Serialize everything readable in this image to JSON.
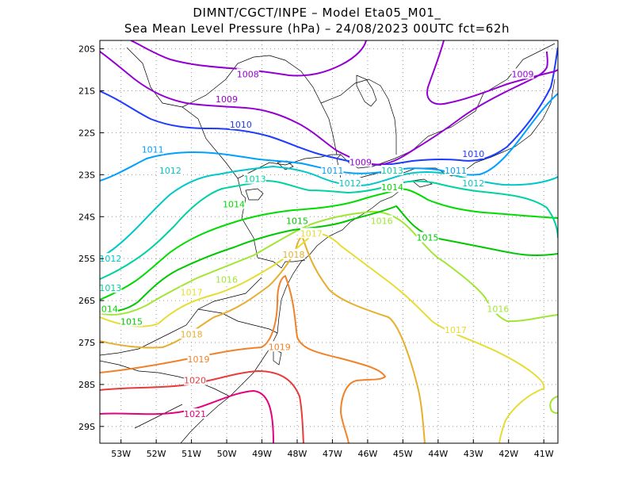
{
  "title": {
    "line1": "DIMNT/CGCT/INPE –  Model Eta05_M01_",
    "line2": "Sea Mean Level Pressure (hPa) – 24/08/2023 00UTC fct=62h"
  },
  "axes": {
    "lat_labels": [
      "20S",
      "21S",
      "22S",
      "23S",
      "24S",
      "25S",
      "26S",
      "27S",
      "28S",
      "29S"
    ],
    "lon_labels": [
      "53W",
      "52W",
      "51W",
      "50W",
      "49W",
      "48W",
      "47W",
      "46W",
      "45W",
      "44W",
      "43W",
      "42W",
      "41W"
    ],
    "lat_range": [
      -29.4,
      -19.8
    ],
    "lon_range": [
      -53.6,
      -40.6
    ],
    "grid": "dotted"
  },
  "contour_labels": [
    {
      "text": "1008",
      "color": "#9400d3",
      "lon": -49.4,
      "lat": -20.6
    },
    {
      "text": "1009",
      "color": "#9400d3",
      "lon": -50.0,
      "lat": -21.2
    },
    {
      "text": "1009",
      "color": "#9400d3",
      "lon": -41.6,
      "lat": -20.6
    },
    {
      "text": "1009",
      "color": "#9400d3",
      "lon": -46.2,
      "lat": -22.7
    },
    {
      "text": "1010",
      "color": "#1e3cff",
      "lon": -49.6,
      "lat": -21.8
    },
    {
      "text": "1010",
      "color": "#1e3cff",
      "lon": -43.0,
      "lat": -22.5
    },
    {
      "text": "1011",
      "color": "#00a0ff",
      "lon": -52.1,
      "lat": -22.4
    },
    {
      "text": "1011",
      "color": "#00a0ff",
      "lon": -47.0,
      "lat": -22.9
    },
    {
      "text": "1011",
      "color": "#00a0ff",
      "lon": -43.5,
      "lat": -22.9
    },
    {
      "text": "1012",
      "color": "#00c8c8",
      "lon": -51.6,
      "lat": -22.9
    },
    {
      "text": "1012",
      "color": "#00c8c8",
      "lon": -46.5,
      "lat": -23.2
    },
    {
      "text": "1012",
      "color": "#00c8c8",
      "lon": -43.0,
      "lat": -23.2
    },
    {
      "text": "1012",
      "color": "#00c8c8",
      "lon": -53.3,
      "lat": -25.0
    },
    {
      "text": "1013",
      "color": "#00d2a0",
      "lon": -49.2,
      "lat": -23.1
    },
    {
      "text": "1013",
      "color": "#00d2a0",
      "lon": -45.3,
      "lat": -22.9
    },
    {
      "text": "1013",
      "color": "#00d2a0",
      "lon": -53.3,
      "lat": -25.7
    },
    {
      "text": "1014",
      "color": "#00dc00",
      "lon": -49.8,
      "lat": -23.7
    },
    {
      "text": "1014",
      "color": "#00dc00",
      "lon": -45.3,
      "lat": -23.3
    },
    {
      "text": "1014",
      "color": "#00dc00",
      "lon": -53.4,
      "lat": -26.2
    },
    {
      "text": "1015",
      "color": "#00c800",
      "lon": -48.0,
      "lat": -24.1
    },
    {
      "text": "1015",
      "color": "#00c800",
      "lon": -44.3,
      "lat": -24.5
    },
    {
      "text": "1015",
      "color": "#00c800",
      "lon": -52.7,
      "lat": -26.5
    },
    {
      "text": "1016",
      "color": "#a0e632",
      "lon": -45.6,
      "lat": -24.1
    },
    {
      "text": "1016",
      "color": "#a0e632",
      "lon": -50.0,
      "lat": -25.5
    },
    {
      "text": "1016",
      "color": "#a0e632",
      "lon": -42.3,
      "lat": -26.2
    },
    {
      "text": "1017",
      "color": "#e6dc32",
      "lon": -47.6,
      "lat": -24.4
    },
    {
      "text": "1017",
      "color": "#e6dc32",
      "lon": -51.0,
      "lat": -25.8
    },
    {
      "text": "1017",
      "color": "#e6dc32",
      "lon": -43.5,
      "lat": -26.7
    },
    {
      "text": "1018",
      "color": "#e6af2d",
      "lon": -48.1,
      "lat": -24.9
    },
    {
      "text": "1018",
      "color": "#e6af2d",
      "lon": -51.0,
      "lat": -26.8
    },
    {
      "text": "1019",
      "color": "#f08228",
      "lon": -48.5,
      "lat": -27.1
    },
    {
      "text": "1019",
      "color": "#f08228",
      "lon": -50.8,
      "lat": -27.4
    },
    {
      "text": "1020",
      "color": "#e63c3c",
      "lon": -50.9,
      "lat": -27.9
    },
    {
      "text": "1021",
      "color": "#e6007d",
      "lon": -50.9,
      "lat": -28.7
    }
  ]
}
